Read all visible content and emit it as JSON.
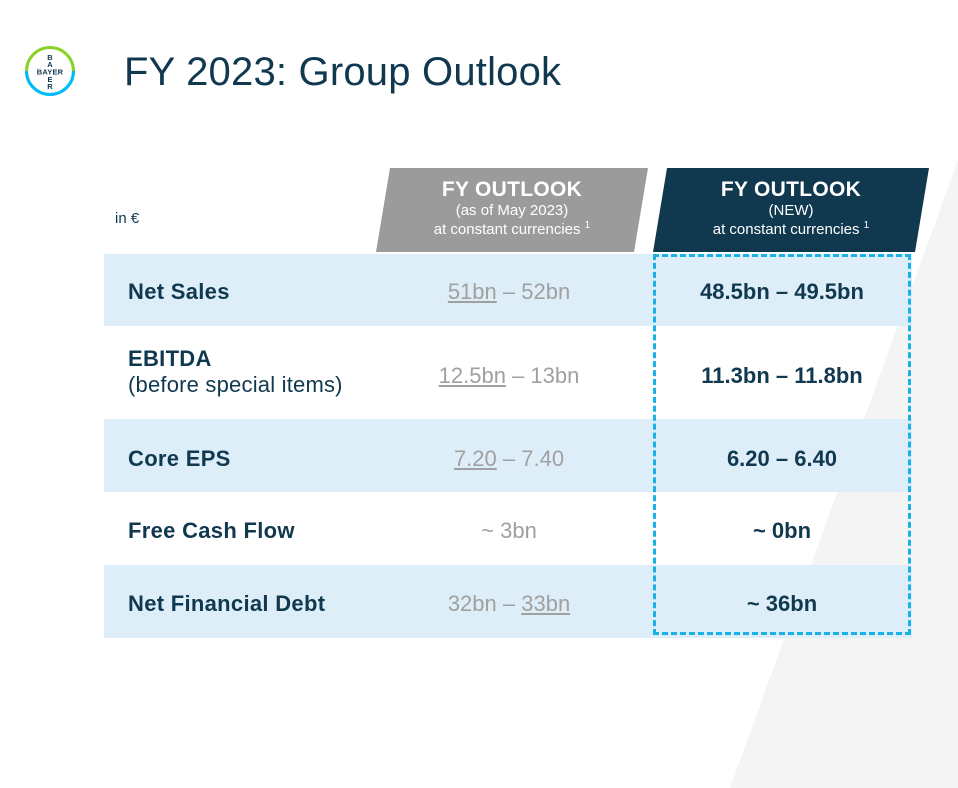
{
  "logo": {
    "text_top": "B",
    "text_row": "BAYER",
    "colors": [
      "#89d329",
      "#00bcff",
      "#10384f"
    ]
  },
  "title": "FY 2023: Group Outlook",
  "unit_label": "in €",
  "columns": {
    "old": {
      "title": "FY OUTLOOK",
      "subtitle": "(as of May 2023)",
      "note": "at constant currencies",
      "footnote": "1"
    },
    "new": {
      "title": "FY OUTLOOK",
      "subtitle": "(NEW)",
      "note": "at constant currencies",
      "footnote": "1"
    }
  },
  "rows": [
    {
      "label": "Net Sales",
      "sublabel": "",
      "old_low": "51bn",
      "old_sep": " – ",
      "old_high": "52bn",
      "underline": "low",
      "new": "48.5bn – 49.5bn"
    },
    {
      "label": "EBITDA",
      "sublabel": "(before special items)",
      "old_low": "12.5bn",
      "old_sep": " – ",
      "old_high": "13bn",
      "underline": "low",
      "new": "11.3bn – 11.8bn"
    },
    {
      "label": "Core EPS",
      "sublabel": "",
      "old_low": "7.20",
      "old_sep": " – ",
      "old_high": "7.40",
      "underline": "low",
      "new": "6.20 – 6.40"
    },
    {
      "label": "Free Cash Flow",
      "sublabel": "",
      "old_single": "~ 3bn",
      "new": "~ 0bn"
    },
    {
      "label": "Net Financial Debt",
      "sublabel": "",
      "old_low": "32bn",
      "old_sep": " – ",
      "old_high": "33bn",
      "underline": "high",
      "new": "~ 36bn"
    }
  ],
  "colors": {
    "navy": "#10384f",
    "header_old": "#9b9b9b",
    "row_shade": "#ddeef8",
    "highlight": "#1bb1e7",
    "muted_text": "#a0a0a0"
  }
}
